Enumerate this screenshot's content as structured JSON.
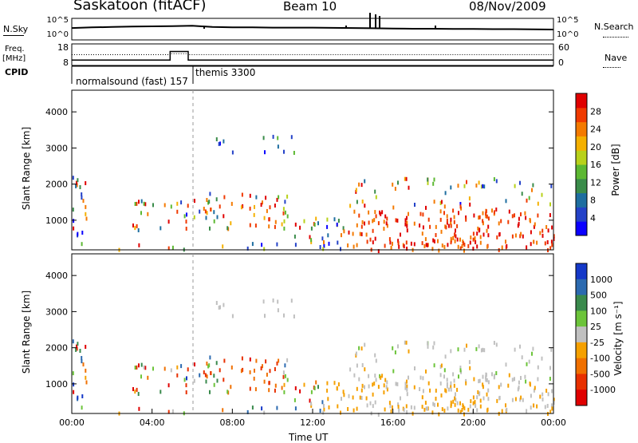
{
  "header": {
    "station": "Saskatoon (fitACF)",
    "beam": "Beam 10",
    "date": "08/Nov/2009"
  },
  "side_labels": {
    "nsky": "N.Sky",
    "nsearch": "N.Search",
    "freq": "Freq.",
    "freq_unit": "[MHz]",
    "cpid": "CPID",
    "nave": "Nave"
  },
  "cpid_labels": [
    "normalsound (fast) 157",
    "themis 3300"
  ],
  "chart_data": [
    {
      "type": "line",
      "name": "noise-panel",
      "y_left_ticks": [
        "10^5",
        "10^0"
      ],
      "y_right_ticks": [
        "10^5",
        "10^0"
      ],
      "x": [
        "00:00",
        "01:00",
        "02:00",
        "03:00",
        "04:00",
        "05:00",
        "06:00",
        "07:00",
        "08:00",
        "09:00",
        "10:00",
        "11:00",
        "12:00",
        "13:00",
        "14:00",
        "15:00",
        "16:00",
        "17:00",
        "18:00",
        "19:00",
        "20:00",
        "21:00",
        "22:00",
        "23:00",
        "24:00"
      ],
      "series": [
        {
          "values": [
            0.55,
            0.58,
            0.6,
            0.62,
            0.63,
            0.64,
            0.66,
            0.6,
            0.58,
            0.58,
            0.57,
            0.57,
            0.57,
            0.56,
            0.55,
            0.54,
            0.53,
            0.52,
            0.52,
            0.51,
            0.51,
            0.5,
            0.5,
            0.49,
            0.48
          ]
        }
      ]
    },
    {
      "type": "line",
      "name": "frequency-panel",
      "y_left_ticks": [
        "18",
        "8"
      ],
      "y_right_ticks": [
        "60",
        "0"
      ],
      "x": [
        "00:00",
        "02:00",
        "04:00",
        "05:00",
        "06:00",
        "07:00",
        "12:00",
        "18:00",
        "24:00"
      ],
      "series": [
        {
          "values": [
            10.5,
            10.5,
            10.5,
            14.5,
            10.5,
            10.5,
            10.5,
            10.5,
            10.5
          ]
        },
        {
          "values": [
            30,
            30,
            30,
            33,
            33,
            30,
            30,
            30,
            30
          ]
        }
      ]
    },
    {
      "type": "heatmap",
      "name": "power-panel",
      "ylabel": "Slant Range [km]",
      "y_ticks": [
        "1000",
        "2000",
        "3000",
        "4000"
      ],
      "ylim": [
        180,
        4600
      ],
      "xlim": [
        0,
        24
      ],
      "colorbar_label": "Power [dB]",
      "colorbar_ticks": [
        "4",
        "8",
        "12",
        "16",
        "20",
        "24",
        "28"
      ],
      "colorbar_colors": [
        "#0b00ff",
        "#2442c8",
        "#1e6ea0",
        "#3a8c4a",
        "#5cb832",
        "#b8d11a",
        "#f4b000",
        "#f47a00",
        "#f03a00",
        "#e00000"
      ]
    },
    {
      "type": "heatmap",
      "name": "velocity-panel",
      "ylabel": "Slant Range [km]",
      "y_ticks": [
        "1000",
        "2000",
        "3000",
        "4000"
      ],
      "ylim": [
        180,
        4600
      ],
      "xlim": [
        0,
        24
      ],
      "xlabel": "Time UT",
      "x_ticks": [
        "00:00",
        "04:00",
        "08:00",
        "12:00",
        "16:00",
        "20:00",
        "00:00"
      ],
      "colorbar_label": "Velocity [m s⁻¹]",
      "colorbar_ticks": [
        "1000",
        "500",
        "100",
        "25",
        "-25",
        "-100",
        "-500",
        "-1000"
      ],
      "colorbar_colors": [
        "#1438c8",
        "#2c6ab0",
        "#3a8a4c",
        "#6cc43a",
        "#c0c0c0",
        "#f5a000",
        "#f07000",
        "#e83000",
        "#e00000"
      ]
    }
  ]
}
